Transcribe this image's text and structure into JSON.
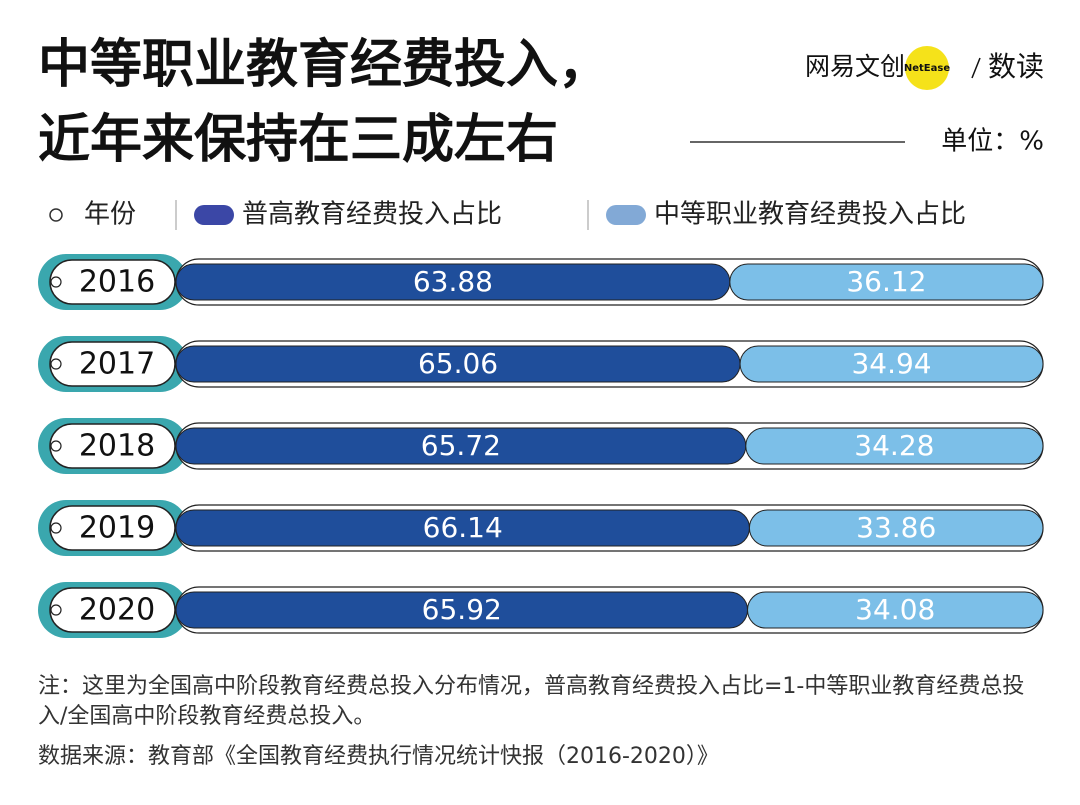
{
  "chart_data": {
    "type": "bar",
    "orientation": "horizontal",
    "stacked": true,
    "title_lines": [
      "中等职业教育经费投入，",
      "近年来保持在三成左右"
    ],
    "brand": {
      "name": "网易文创",
      "badge": "NetEase",
      "section": "数读"
    },
    "unit": "单位：%",
    "category_legend": "年份",
    "categories": [
      "2016",
      "2017",
      "2018",
      "2019",
      "2020"
    ],
    "series": [
      {
        "name": "普高教育经费投入占比",
        "color": "#1f4e9b",
        "legend_color": "#3b47a6",
        "values": [
          63.88,
          65.06,
          65.72,
          66.14,
          65.92
        ]
      },
      {
        "name": "中等职业教育经费投入占比",
        "color": "#7cbfe8",
        "legend_color": "#82a9d6",
        "values": [
          36.12,
          34.94,
          34.28,
          33.86,
          34.08
        ]
      }
    ],
    "xlim": [
      0,
      100
    ],
    "note": "注：这里为全国高中阶段教育经费总投入分布情况，普高教育经费投入占比=1-中等职业教育经费总投入/全国高中阶段教育经费总投入。",
    "source": "数据来源：教育部《全国教育经费执行情况统计快报（2016-2020）》"
  }
}
